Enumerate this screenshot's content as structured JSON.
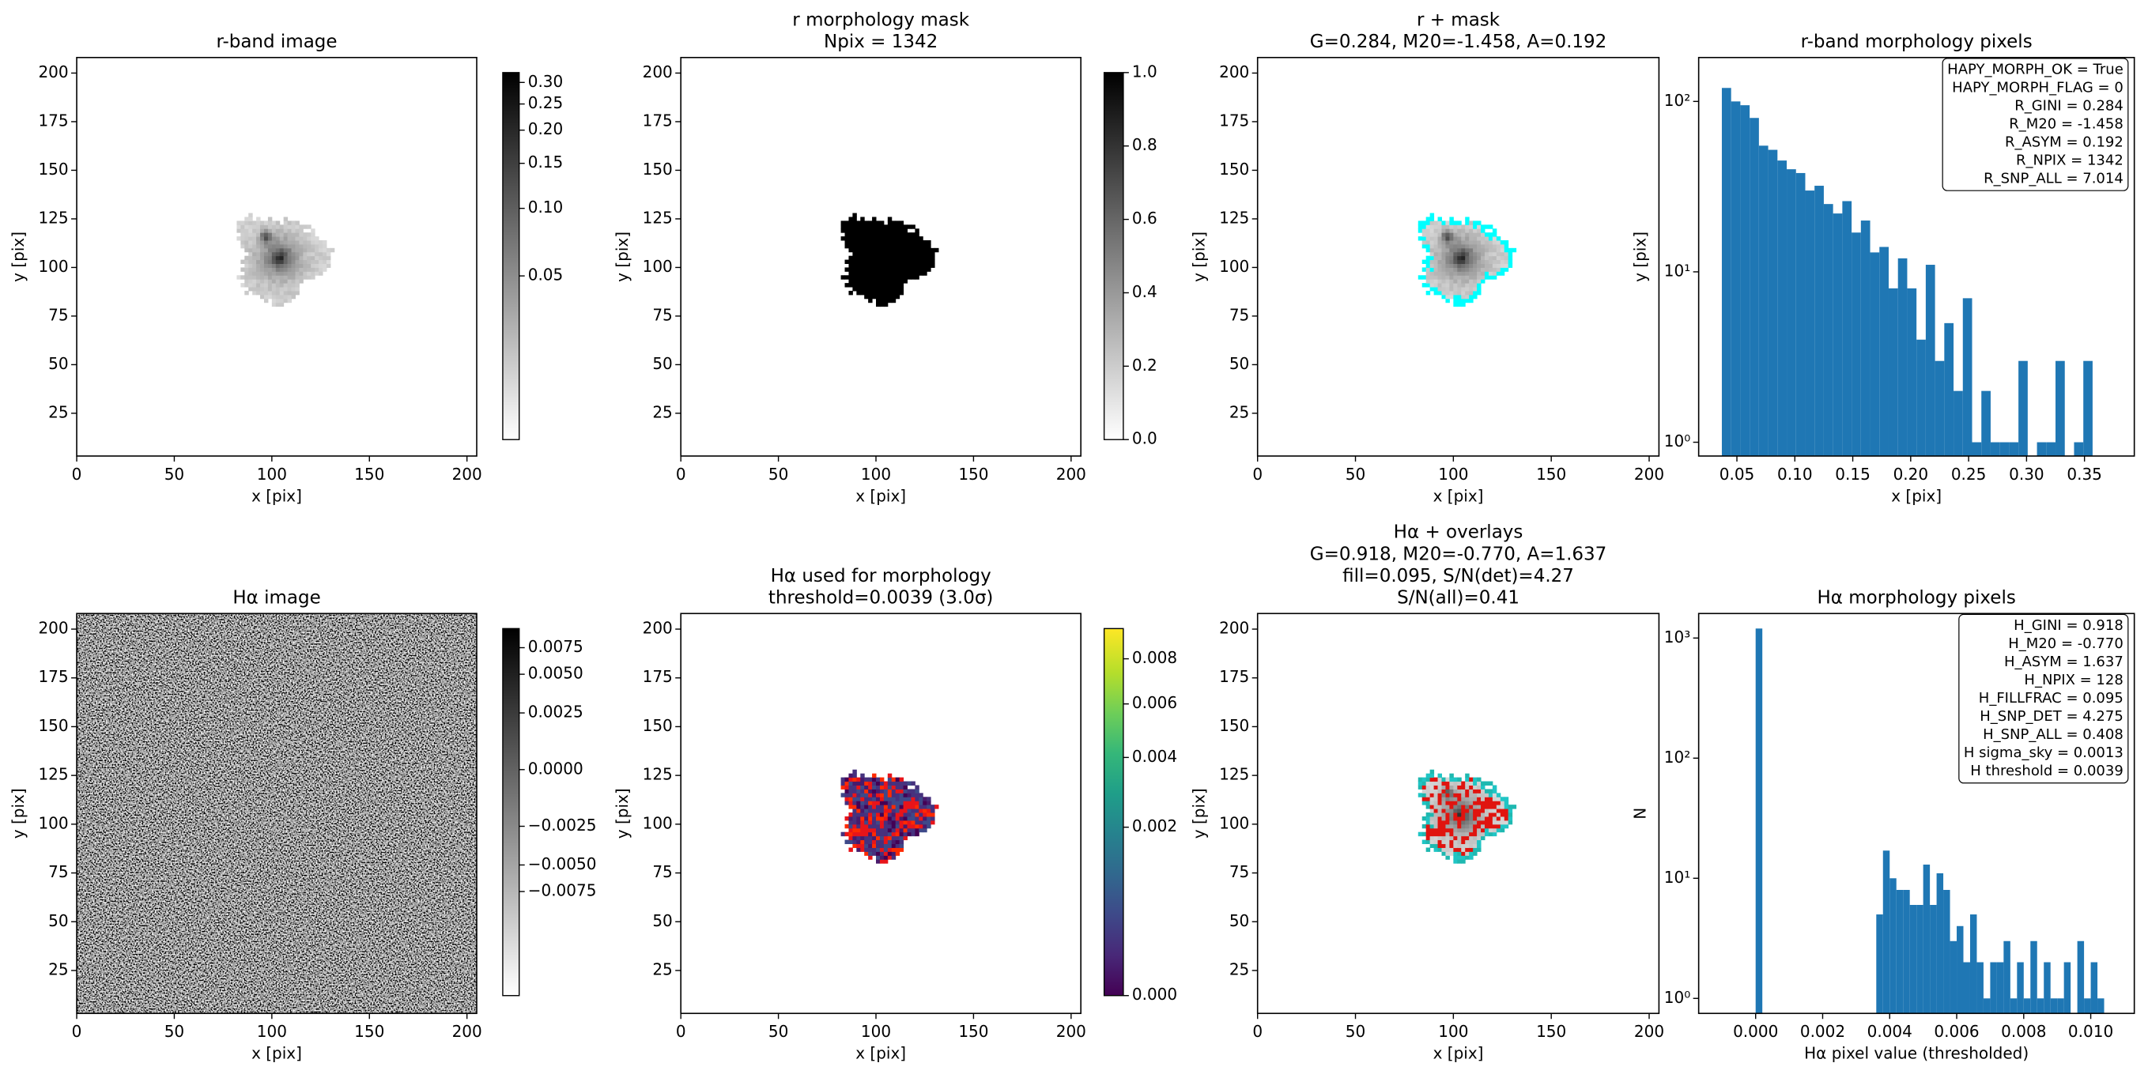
{
  "chart_data": [
    {
      "type": "image",
      "title": [
        "r-band image"
      ],
      "xlabel": "x [pix]",
      "ylabel": "y [pix]",
      "xlim": [
        0,
        205
      ],
      "ylim": [
        3,
        208
      ],
      "xticks": [
        0,
        50,
        100,
        150,
        200
      ],
      "yticks": [
        25,
        50,
        75,
        100,
        125,
        150,
        175,
        200
      ],
      "colorbar": {
        "cmap": "gray_r",
        "scale": "asinh",
        "asinh_scale": 0.05,
        "clim": [
          -0.025,
          0.326
        ],
        "ticks": [
          0.05,
          {
            "value": 0.1,
            "label": "0.10"
          },
          0.15,
          {
            "value": 0.2,
            "label": "0.20"
          },
          0.25,
          {
            "value": 0.3,
            "label": "0.30"
          }
        ]
      }
    },
    {
      "type": "image",
      "title": [
        "r morphology mask",
        "Npix = 1342"
      ],
      "xlabel": "x [pix]",
      "ylabel": "y [pix]",
      "xlim": [
        0,
        205
      ],
      "ylim": [
        3,
        208
      ],
      "xticks": [
        0,
        50,
        100,
        150,
        200
      ],
      "yticks": [
        25,
        50,
        75,
        100,
        125,
        150,
        175,
        200
      ],
      "colorbar": {
        "cmap": "gray_r",
        "scale": "linear",
        "clim": [
          0,
          1
        ],
        "ticks": [
          {
            "value": 0,
            "label": "0.0"
          },
          0.2,
          0.4,
          0.6,
          0.8,
          {
            "value": 1,
            "label": "1.0"
          }
        ]
      }
    },
    {
      "type": "image",
      "title": [
        "r + mask",
        "G=0.284, M20=-1.458, A=0.192"
      ],
      "xlabel": "x [pix]",
      "ylabel": "y [pix]",
      "xlim": [
        0,
        205
      ],
      "ylim": [
        3,
        208
      ],
      "xticks": [
        0,
        50,
        100,
        150,
        200
      ],
      "yticks": [
        25,
        50,
        75,
        100,
        125,
        150,
        175,
        200
      ]
    },
    {
      "type": "histogram",
      "title": [
        "r-band morphology pixels"
      ],
      "xlabel": "x [pix]",
      "ylabel": "y [pix]",
      "color": "#1f77b4",
      "yscale": "log",
      "bins": [
        0.037,
        0.045,
        0.053,
        0.061,
        0.069,
        0.077,
        0.085,
        0.093,
        0.101,
        0.109,
        0.117,
        0.125,
        0.133,
        0.141,
        0.149,
        0.157,
        0.165,
        0.173,
        0.181,
        0.189,
        0.197,
        0.205,
        0.213,
        0.221,
        0.229,
        0.237,
        0.245,
        0.253,
        0.261,
        0.269,
        0.277,
        0.285,
        0.293,
        0.301,
        0.309,
        0.317,
        0.325,
        0.333,
        0.341,
        0.349,
        0.357
      ],
      "counts": [
        120,
        100,
        95,
        80,
        55,
        52,
        45,
        40,
        38,
        30,
        32,
        25,
        22,
        26,
        17,
        20,
        13,
        14,
        8,
        12,
        8,
        4,
        11,
        3,
        5,
        2,
        7,
        1,
        2,
        1,
        1,
        1,
        3,
        0,
        1,
        1,
        3,
        0,
        1,
        3
      ],
      "xlim": [
        0.017,
        0.393
      ],
      "ylim": [
        0.83,
        181
      ],
      "xticks": [
        0.05,
        {
          "value": 0.1,
          "label": "0.10"
        },
        0.15,
        {
          "value": 0.2,
          "label": "0.20"
        },
        0.25,
        {
          "value": 0.3,
          "label": "0.30"
        },
        0.35
      ],
      "yticks": [
        {
          "value": 1,
          "label": "10⁰"
        },
        {
          "value": 10,
          "label": "10¹"
        },
        {
          "value": 100,
          "label": "10²"
        }
      ],
      "annotation": [
        "HAPY_MORPH_OK = True",
        "HAPY_MORPH_FLAG = 0",
        "R_GINI = 0.284",
        "R_M20 = -1.458",
        "R_ASYM = 0.192",
        "R_NPIX = 1342",
        "R_SNP_ALL = 7.014"
      ]
    },
    {
      "type": "image",
      "title": [
        "Hα image"
      ],
      "xlabel": "x [pix]",
      "ylabel": "y [pix]",
      "xlim": [
        0,
        205
      ],
      "ylim": [
        3,
        208
      ],
      "xticks": [
        0,
        50,
        100,
        150,
        200
      ],
      "yticks": [
        25,
        50,
        75,
        100,
        125,
        150,
        175,
        200
      ],
      "colorbar": {
        "cmap": "gray_r",
        "scale": "asinh",
        "asinh_scale": 0.0029,
        "clim": [
          -0.0325,
          0.0099
        ],
        "ticks": [
          0.0075,
          {
            "value": 0.005,
            "label": "0.0050"
          },
          0.0025,
          {
            "value": 0,
            "label": "0.0000"
          },
          {
            "value": -0.0025,
            "label": "−0.0025"
          },
          {
            "value": -0.005,
            "label": "−0.0050"
          },
          {
            "value": -0.0075,
            "label": "−0.0075"
          }
        ]
      }
    },
    {
      "type": "image",
      "title": [
        "Hα used for morphology",
        "threshold=0.0039 (3.0σ)"
      ],
      "xlabel": "x [pix]",
      "ylabel": "y [pix]",
      "xlim": [
        0,
        205
      ],
      "ylim": [
        3,
        208
      ],
      "xticks": [
        0,
        50,
        100,
        150,
        200
      ],
      "yticks": [
        25,
        50,
        75,
        100,
        125,
        150,
        175,
        200
      ],
      "colorbar": {
        "cmap": "viridis",
        "scale": "sqrt",
        "clim": [
          0,
          0.0095
        ],
        "ticks": [
          {
            "value": 0,
            "label": "0.000"
          },
          0.002,
          0.004,
          0.006,
          0.008
        ]
      }
    },
    {
      "type": "image",
      "title": [
        "Hα + overlays",
        "G=0.918, M20=-0.770, A=1.637",
        "fill=0.095, S/N(det)=4.27",
        "S/N(all)=0.41"
      ],
      "xlabel": "x [pix]",
      "ylabel": "y [pix]",
      "xlim": [
        0,
        205
      ],
      "ylim": [
        3,
        208
      ],
      "xticks": [
        0,
        50,
        100,
        150,
        200
      ],
      "yticks": [
        25,
        50,
        75,
        100,
        125,
        150,
        175,
        200
      ]
    },
    {
      "type": "histogram",
      "title": [
        "Hα morphology pixels"
      ],
      "xlabel": "Hα pixel value (thresholded)",
      "ylabel": "N",
      "color": "#1f77b4",
      "yscale": "log",
      "bins": [
        0,
        0.0002,
        0.0004,
        0.0006,
        0.0008,
        0.001,
        0.0012,
        0.0014,
        0.0016,
        0.0018,
        0.002,
        0.0022,
        0.0024,
        0.0026,
        0.0028,
        0.003,
        0.0032,
        0.0034,
        0.0036,
        0.0038,
        0.004,
        0.0042,
        0.0044,
        0.0046,
        0.0048,
        0.005,
        0.0052,
        0.0054,
        0.0056,
        0.0058,
        0.006,
        0.0062,
        0.0064,
        0.0066,
        0.0068,
        0.007,
        0.0072,
        0.0074,
        0.0076,
        0.0078,
        0.008,
        0.0082,
        0.0084,
        0.0086,
        0.0088,
        0.009,
        0.0092,
        0.0094,
        0.0096,
        0.0098,
        0.01,
        0.0102,
        0.0104
      ],
      "counts": [
        1200,
        0,
        0,
        0,
        0,
        0,
        0,
        0,
        0,
        0,
        0,
        0,
        0,
        0,
        0,
        0,
        0,
        0,
        5,
        17,
        10,
        8,
        8,
        6,
        6,
        13,
        6,
        11,
        8,
        3,
        4,
        2,
        5,
        2,
        1,
        2,
        2,
        3,
        1,
        2,
        1,
        3,
        1,
        2,
        1,
        1,
        2,
        0,
        3,
        1,
        2,
        1
      ],
      "xlim": [
        -0.0017,
        0.0113
      ],
      "ylim": [
        0.75,
        1600
      ],
      "xticks": [
        {
          "value": 0,
          "label": "0.000"
        },
        0.002,
        0.004,
        0.006,
        0.008,
        {
          "value": 0.01,
          "label": "0.010"
        }
      ],
      "yticks": [
        {
          "value": 1,
          "label": "10⁰"
        },
        {
          "value": 10,
          "label": "10¹"
        },
        {
          "value": 100,
          "label": "10²"
        },
        {
          "value": 1000,
          "label": "10³"
        }
      ],
      "annotation": [
        "H_GINI = 0.918",
        "H_M20 = -0.770",
        "H_ASYM = 1.637",
        "H_NPIX = 128",
        "H_FILLFRAC = 0.095",
        "H_SNP_DET = 4.275",
        "H_SNP_ALL = 0.408",
        "H sigma_sky = 0.0013",
        "H threshold = 0.0039"
      ]
    }
  ]
}
